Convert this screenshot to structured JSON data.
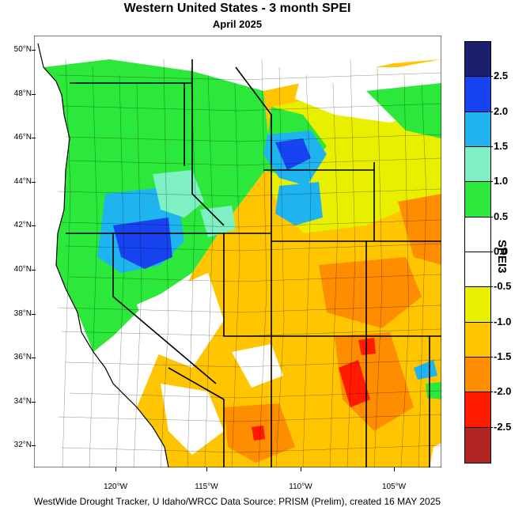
{
  "title": "Western United States - 3 month SPEI",
  "subtitle": "April 2025",
  "footer": "WestWide Drought Tracker, U Idaho/WRCC Data Source: PRISM (Prelim), created 16 MAY 2025",
  "colorbar": {
    "title": "SPEI3",
    "labels": [
      "2.5",
      "2.0",
      "1.5",
      "1.0",
      "0.5",
      "0.0",
      "-0.5",
      "-1.0",
      "-1.5",
      "-2.0",
      "-2.5"
    ],
    "colors": [
      "#1b1f6e",
      "#1843f0",
      "#1fb4ef",
      "#7ef0c4",
      "#2ce83a",
      "#ffffff",
      "#ffffff",
      "#e8f000",
      "#fec500",
      "#fe8d00",
      "#ff1a00",
      "#b22424"
    ]
  },
  "axes": {
    "lat_labels": [
      "50°N",
      "48°N",
      "46°N",
      "44°N",
      "42°N",
      "40°N",
      "38°N",
      "36°N",
      "34°N",
      "32°N"
    ],
    "lon_labels": [
      "120°W",
      "115°W",
      "110°W",
      "105°W"
    ]
  },
  "map_colors": {
    "very_wet": "#1843f0",
    "wet": "#1fb4ef",
    "moderately_wet": "#7ef0c4",
    "slightly_wet": "#2ce83a",
    "normal": "#ffffff",
    "slightly_dry": "#e8f000",
    "moderately_dry": "#fec500",
    "dry": "#fe8d00",
    "very_dry": "#ff1a00"
  }
}
